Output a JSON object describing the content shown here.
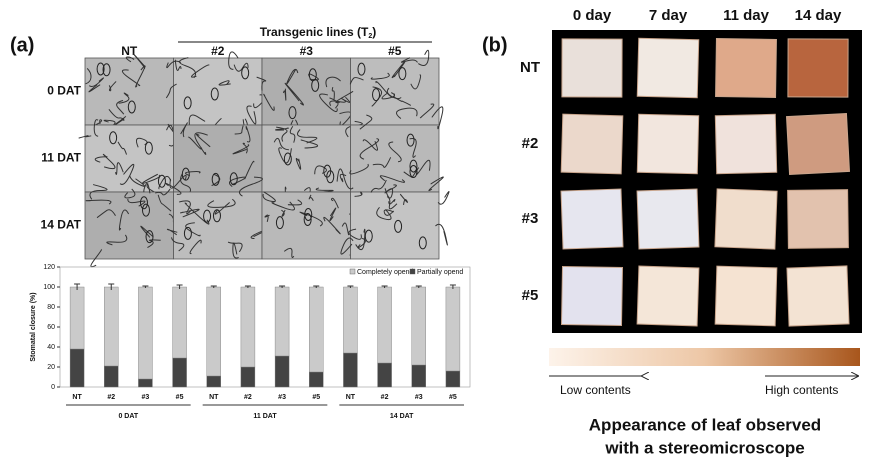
{
  "panel_a": {
    "label": "(a)",
    "heading_main": "Transgenic  lines  (T",
    "heading_sub": "2",
    "heading_end": ")",
    "columns": [
      "NT",
      "#2",
      "#3",
      "#5"
    ],
    "rows": [
      "0 DAT",
      "11 DAT",
      "14 DAT"
    ]
  },
  "chart_data": {
    "type": "bar",
    "stacked": true,
    "y_label": "Stomatal closure (%)",
    "categories": [
      "NT",
      "#2",
      "#3",
      "#5",
      "NT",
      "#2",
      "#3",
      "#5",
      "NT",
      "#2",
      "#3",
      "#5"
    ],
    "group_labels": [
      "0 DAT",
      "11 DAT",
      "14 DAT"
    ],
    "series": [
      {
        "name": "Partially opend",
        "color": "#444444",
        "values": [
          38,
          21,
          8,
          29,
          11,
          20,
          31,
          15,
          34,
          24,
          22,
          16
        ]
      },
      {
        "name": "Completely opend",
        "color": "#cacaca",
        "values": [
          62,
          79,
          92,
          71,
          89,
          80,
          69,
          85,
          66,
          76,
          78,
          84
        ],
        "errors": [
          3,
          3,
          1,
          2,
          1,
          1,
          1,
          1,
          1,
          1,
          1,
          2
        ]
      }
    ],
    "ylim": [
      0,
      120
    ],
    "yticks": [
      0,
      20,
      40,
      60,
      80,
      100,
      120
    ],
    "legend": "top-right"
  },
  "panel_b": {
    "label": "(b)",
    "columns": [
      "0 day",
      "7 day",
      "11 day",
      "14 day"
    ],
    "rows": [
      "NT",
      "#2",
      "#3",
      "#5"
    ],
    "scale_low": "Low contents",
    "scale_high": "High contents",
    "caption": [
      "Appearance of leaf observed",
      "with a stereomicroscope"
    ]
  }
}
